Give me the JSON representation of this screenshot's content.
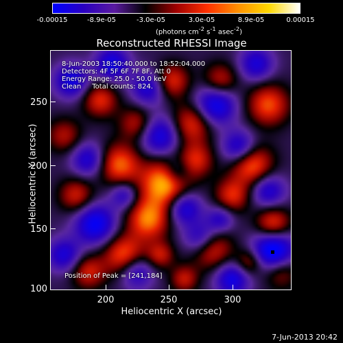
{
  "colorbar": {
    "tick_labels": [
      "-0.00015",
      "-8.9e-05",
      "-3.0e-05",
      "3.0e-05",
      "8.9e-05",
      "0.00015"
    ],
    "units_html": "(photons cm<sup>-2</sup> s<sup>-1</sup> asec<sup>-2</sup>)",
    "colors": [
      "#0000ff",
      "#2a00c0",
      "#5a1aa0",
      "#000000",
      "#a00000",
      "#ff3000",
      "#ff9000",
      "#ffd800",
      "#ffffff"
    ]
  },
  "plot": {
    "title": "Reconstructed RHESSI Image",
    "info_line1": "8-Jun-2003 18:50:40.000 to 18:52:04.000",
    "info_line2": "Detectors: 4F 5F 6F 7F 8F, Att 0",
    "info_line3": "Energy Range: 25.0 - 50.0 keV",
    "info_line4": "Clean     Total counts: 824.",
    "peak_text": "Position of Peak = [241,184]",
    "xlabel": "Heliocentric X (arcsec)",
    "ylabel": "Heliocentric Y (arcsec)",
    "xticks": [
      "200",
      "250",
      "300"
    ],
    "yticks": [
      "250",
      "200",
      "150",
      "100"
    ]
  },
  "footer": {
    "date": "7-Jun-2013 20:42"
  }
}
